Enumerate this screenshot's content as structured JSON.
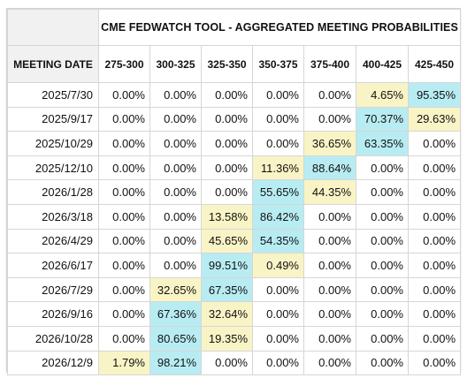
{
  "title": "CME FEDWATCH TOOL - AGGREGATED MEETING PROBABILITIES",
  "date_header": "MEETING DATE",
  "columns": [
    "275-300",
    "300-325",
    "325-350",
    "350-375",
    "375-400",
    "400-425",
    "425-450"
  ],
  "colors": {
    "high": "#b8ecf3",
    "low": "#f9f4c6"
  },
  "rows": [
    {
      "date": "2025/7/30",
      "values": [
        "0.00%",
        "0.00%",
        "0.00%",
        "0.00%",
        "0.00%",
        "4.65%",
        "95.35%"
      ],
      "shade": [
        "",
        "",
        "",
        "",
        "",
        "lo",
        "hi"
      ]
    },
    {
      "date": "2025/9/17",
      "values": [
        "0.00%",
        "0.00%",
        "0.00%",
        "0.00%",
        "0.00%",
        "70.37%",
        "29.63%"
      ],
      "shade": [
        "",
        "",
        "",
        "",
        "",
        "hi",
        "lo"
      ]
    },
    {
      "date": "2025/10/29",
      "values": [
        "0.00%",
        "0.00%",
        "0.00%",
        "0.00%",
        "36.65%",
        "63.35%",
        "0.00%"
      ],
      "shade": [
        "",
        "",
        "",
        "",
        "lo",
        "hi",
        ""
      ]
    },
    {
      "date": "2025/12/10",
      "values": [
        "0.00%",
        "0.00%",
        "0.00%",
        "11.36%",
        "88.64%",
        "0.00%",
        "0.00%"
      ],
      "shade": [
        "",
        "",
        "",
        "lo",
        "hi",
        "",
        ""
      ]
    },
    {
      "date": "2026/1/28",
      "values": [
        "0.00%",
        "0.00%",
        "0.00%",
        "55.65%",
        "44.35%",
        "0.00%",
        "0.00%"
      ],
      "shade": [
        "",
        "",
        "",
        "hi",
        "lo",
        "",
        ""
      ]
    },
    {
      "date": "2026/3/18",
      "values": [
        "0.00%",
        "0.00%",
        "13.58%",
        "86.42%",
        "0.00%",
        "0.00%",
        "0.00%"
      ],
      "shade": [
        "",
        "",
        "lo",
        "hi",
        "",
        "",
        ""
      ]
    },
    {
      "date": "2026/4/29",
      "values": [
        "0.00%",
        "0.00%",
        "45.65%",
        "54.35%",
        "0.00%",
        "0.00%",
        "0.00%"
      ],
      "shade": [
        "",
        "",
        "lo",
        "hi",
        "",
        "",
        ""
      ]
    },
    {
      "date": "2026/6/17",
      "values": [
        "0.00%",
        "0.00%",
        "99.51%",
        "0.49%",
        "0.00%",
        "0.00%",
        "0.00%"
      ],
      "shade": [
        "",
        "",
        "hi",
        "lo",
        "",
        "",
        ""
      ]
    },
    {
      "date": "2026/7/29",
      "values": [
        "0.00%",
        "32.65%",
        "67.35%",
        "0.00%",
        "0.00%",
        "0.00%",
        "0.00%"
      ],
      "shade": [
        "",
        "lo",
        "hi",
        "",
        "",
        "",
        ""
      ]
    },
    {
      "date": "2026/9/16",
      "values": [
        "0.00%",
        "67.36%",
        "32.64%",
        "0.00%",
        "0.00%",
        "0.00%",
        "0.00%"
      ],
      "shade": [
        "",
        "hi",
        "lo",
        "",
        "",
        "",
        ""
      ]
    },
    {
      "date": "2026/10/28",
      "values": [
        "0.00%",
        "80.65%",
        "19.35%",
        "0.00%",
        "0.00%",
        "0.00%",
        "0.00%"
      ],
      "shade": [
        "",
        "hi",
        "lo",
        "",
        "",
        "",
        ""
      ]
    },
    {
      "date": "2026/12/9",
      "values": [
        "1.79%",
        "98.21%",
        "0.00%",
        "0.00%",
        "0.00%",
        "0.00%",
        "0.00%"
      ],
      "shade": [
        "lo",
        "hi",
        "",
        "",
        "",
        "",
        ""
      ]
    }
  ]
}
